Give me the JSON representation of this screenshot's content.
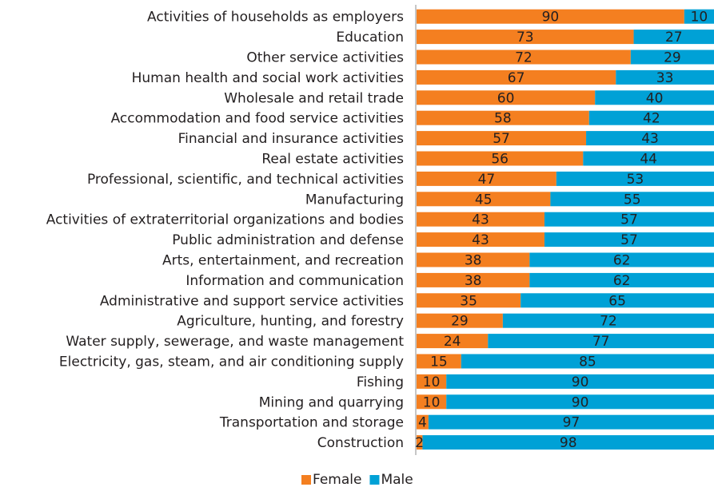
{
  "chart_data": {
    "type": "bar",
    "orientation": "horizontal",
    "stacked": true,
    "normalized": "percent",
    "categories": [
      "Activities of households as employers",
      "Education",
      "Other service activities",
      "Human health and social work activities",
      "Wholesale and retail trade",
      "Accommodation and food service activities",
      "Financial and insurance activities",
      "Real estate activities",
      "Professional, scientific, and technical activities",
      "Manufacturing",
      "Activities of extraterritorial organizations and bodies",
      "Public administration and defense",
      "Arts, entertainment, and recreation",
      "Information and communication",
      "Administrative and support service activities",
      "Agriculture, hunting, and forestry",
      "Water supply, sewerage, and waste management",
      "Electricity, gas, steam, and air conditioning supply",
      "Fishing",
      "Mining and quarrying",
      "Transportation and storage",
      "Construction"
    ],
    "series": [
      {
        "name": "Female",
        "color": "#f47f20",
        "values": [
          90,
          73,
          72,
          67,
          60,
          58,
          57,
          56,
          47,
          45,
          43,
          43,
          38,
          38,
          35,
          29,
          24,
          15,
          10,
          10,
          4,
          2
        ]
      },
      {
        "name": "Male",
        "color": "#00a1d6",
        "values": [
          10,
          27,
          29,
          33,
          40,
          42,
          43,
          44,
          53,
          55,
          57,
          57,
          62,
          62,
          65,
          72,
          77,
          85,
          90,
          90,
          97,
          98
        ]
      }
    ],
    "xlim": [
      0,
      100
    ],
    "title": "",
    "xlabel": "",
    "ylabel": "",
    "grid": false,
    "legend": "bottom-center"
  }
}
